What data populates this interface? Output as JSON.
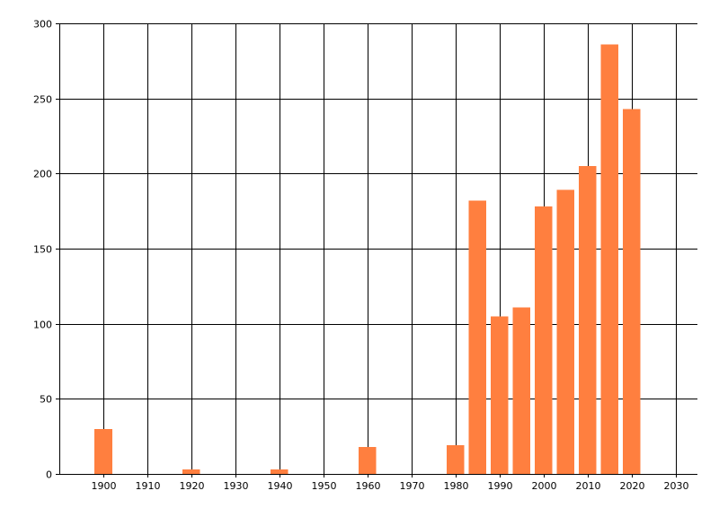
{
  "chart_data": {
    "type": "bar",
    "x_ticks": [
      1900,
      1910,
      1920,
      1930,
      1940,
      1950,
      1960,
      1970,
      1980,
      1990,
      2000,
      2010,
      2020,
      2030
    ],
    "y_ticks": [
      0,
      50,
      100,
      150,
      200,
      250,
      300
    ],
    "xlim": [
      1890,
      2035
    ],
    "ylim": [
      0,
      300
    ],
    "grid": true,
    "bar_color": "#ff7f3f",
    "series": [
      {
        "x": [
          1900,
          1920,
          1940,
          1960,
          1980,
          1985,
          1990,
          1995,
          2000,
          2005,
          2010,
          2015,
          2020
        ],
        "values": [
          30,
          3,
          3,
          18,
          19,
          182,
          105,
          111,
          178,
          189,
          205,
          286,
          243
        ]
      }
    ]
  }
}
